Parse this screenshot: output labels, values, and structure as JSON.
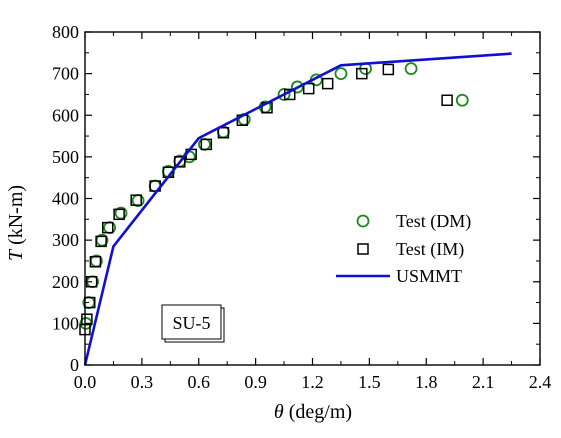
{
  "chart_data": {
    "type": "scatter",
    "annotation": "SU-5",
    "xlabel": {
      "symbol": "θ",
      "unit": " (deg/m)"
    },
    "ylabel": {
      "symbol": "T",
      "unit": " (kN-m)"
    },
    "xlim": [
      0,
      2.4
    ],
    "ylim": [
      0,
      800
    ],
    "xticks": [
      "0.0",
      "0.3",
      "0.6",
      "0.9",
      "1.2",
      "1.5",
      "1.8",
      "2.1",
      "2.4"
    ],
    "yticks": [
      "0",
      "100",
      "200",
      "300",
      "400",
      "500",
      "600",
      "700",
      "800"
    ],
    "grid": false,
    "legend_position": "right",
    "series": [
      {
        "name": "Test (DM)",
        "marker": "circle",
        "color": "#1a8a1a",
        "points": [
          [
            0.005,
            100
          ],
          [
            0.02,
            150
          ],
          [
            0.04,
            200
          ],
          [
            0.06,
            250
          ],
          [
            0.09,
            300
          ],
          [
            0.13,
            330
          ],
          [
            0.19,
            365
          ],
          [
            0.28,
            395
          ],
          [
            0.37,
            430
          ],
          [
            0.44,
            465
          ],
          [
            0.5,
            490
          ],
          [
            0.55,
            500
          ],
          [
            0.63,
            530
          ],
          [
            0.73,
            560
          ],
          [
            0.84,
            590
          ],
          [
            0.95,
            620
          ],
          [
            1.05,
            650
          ],
          [
            1.12,
            668
          ],
          [
            1.22,
            685
          ],
          [
            1.35,
            700
          ],
          [
            1.48,
            712
          ],
          [
            1.72,
            712
          ],
          [
            1.99,
            636
          ]
        ]
      },
      {
        "name": "Test (IM)",
        "marker": "square",
        "color": "#000000",
        "points": [
          [
            0.0,
            85
          ],
          [
            0.01,
            110
          ],
          [
            0.025,
            150
          ],
          [
            0.035,
            200
          ],
          [
            0.055,
            248
          ],
          [
            0.085,
            297
          ],
          [
            0.12,
            330
          ],
          [
            0.18,
            362
          ],
          [
            0.27,
            396
          ],
          [
            0.37,
            430
          ],
          [
            0.44,
            463
          ],
          [
            0.5,
            488
          ],
          [
            0.56,
            506
          ],
          [
            0.64,
            530
          ],
          [
            0.73,
            558
          ],
          [
            0.83,
            588
          ],
          [
            0.96,
            618
          ],
          [
            1.08,
            650
          ],
          [
            1.18,
            664
          ],
          [
            1.28,
            676
          ],
          [
            1.46,
            700
          ],
          [
            1.6,
            710
          ],
          [
            1.91,
            636
          ]
        ]
      },
      {
        "name": "USMMT",
        "marker": "line",
        "color": "#1010d0",
        "points": [
          [
            0.0,
            0
          ],
          [
            0.15,
            285
          ],
          [
            0.6,
            545
          ],
          [
            1.35,
            720
          ],
          [
            2.25,
            748
          ]
        ]
      }
    ]
  }
}
